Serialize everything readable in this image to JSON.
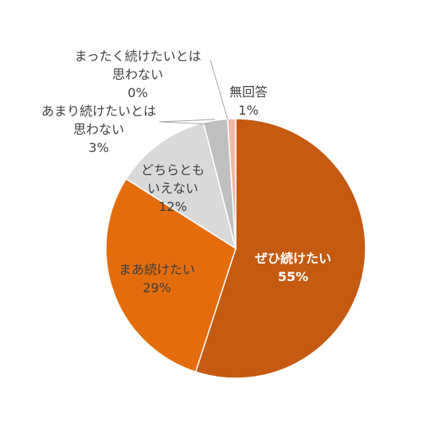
{
  "chart_data": {
    "type": "pie",
    "categories": [
      "ぜひ続けたい",
      "まあ続けたい",
      "どちらともいえない",
      "あまり続けたいとは思わない",
      "まったく続けたいとは思わない",
      "無回答"
    ],
    "values": [
      55,
      29,
      12,
      3,
      0,
      1
    ],
    "value_labels": [
      "55%",
      "29%",
      "12%",
      "3%",
      "0%",
      "1%"
    ],
    "colors": [
      "#c55a11",
      "#e46c0a",
      "#d9d9d9",
      "#bfbfbf",
      "#a6a6a6",
      "#f4b6a8"
    ]
  }
}
